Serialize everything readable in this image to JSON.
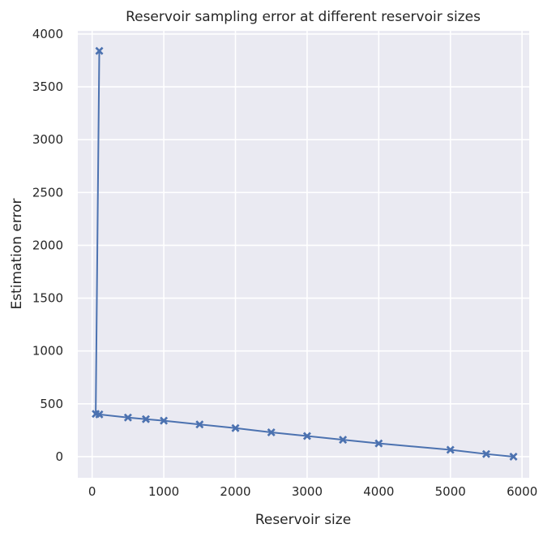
{
  "chart_data": {
    "type": "line",
    "title": "Reservoir sampling error at different reservoir sizes",
    "xlabel": "Reservoir size",
    "ylabel": "Estimation error",
    "xlim": [
      -200,
      6100
    ],
    "ylim": [
      -200,
      4030
    ],
    "xticks": [
      0,
      1000,
      2000,
      3000,
      4000,
      5000,
      6000
    ],
    "yticks": [
      0,
      500,
      1000,
      1500,
      2000,
      2500,
      3000,
      3500,
      4000
    ],
    "grid": true,
    "marker": "X",
    "series": [
      {
        "color": "#4c72b0",
        "x": [
          100,
          50,
          100,
          500,
          750,
          1000,
          1500,
          2000,
          2500,
          3000,
          3500,
          4000,
          5000,
          5500,
          5880
        ],
        "y": [
          3840,
          405,
          400,
          370,
          355,
          340,
          305,
          270,
          230,
          195,
          160,
          125,
          65,
          25,
          0
        ]
      }
    ]
  }
}
